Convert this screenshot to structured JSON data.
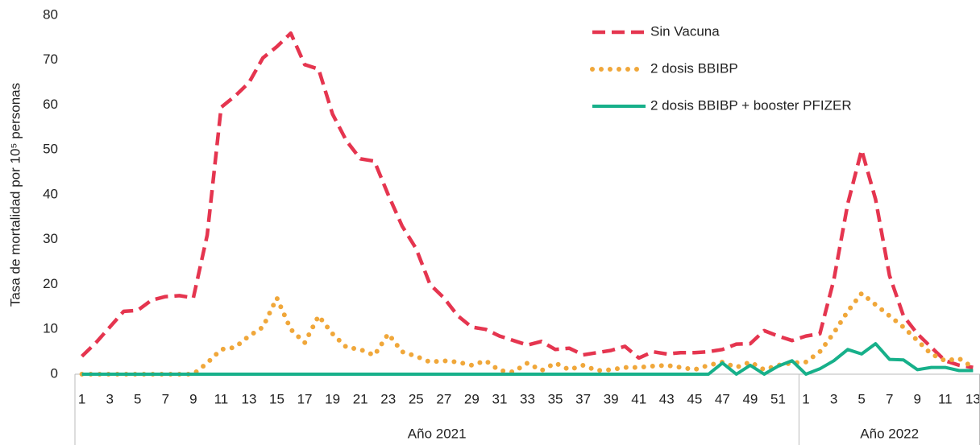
{
  "chart_data": {
    "type": "line",
    "y_label": "Tasa de mortalidad por 10⁵ personas",
    "category_groups": [
      {
        "name": "Año 2021",
        "categories": [
          "1",
          null,
          "3",
          null,
          "5",
          null,
          "7",
          null,
          "9",
          null,
          "11",
          null,
          "13",
          null,
          "15",
          null,
          "17",
          null,
          "19",
          null,
          "21",
          null,
          "23",
          null,
          "25",
          null,
          "27",
          null,
          "29",
          null,
          "31",
          null,
          "33",
          null,
          "35",
          null,
          "37",
          null,
          "39",
          null,
          "41",
          null,
          "43",
          null,
          "45",
          null,
          "47",
          null,
          "49",
          null,
          "51",
          null
        ]
      },
      {
        "name": "Año 2022",
        "categories": [
          "1",
          null,
          "3",
          null,
          "5",
          null,
          "7",
          null,
          "9",
          null,
          "11",
          null,
          "13"
        ]
      }
    ],
    "series": [
      {
        "name": "Sin Vacuna",
        "color": "#e5354f",
        "style": "dashed",
        "values": [
          4,
          7,
          10.5,
          14,
          14.2,
          16.5,
          17.3,
          17.5,
          17,
          31,
          59.5,
          62,
          65,
          70.5,
          73,
          76,
          69,
          68,
          58,
          52,
          48,
          47.5,
          40,
          33,
          28,
          20,
          17,
          13,
          10.5,
          10,
          8.5,
          7.5,
          6.5,
          7.3,
          5.5,
          5.8,
          4.3,
          4.8,
          5.3,
          6.2,
          3.6,
          5,
          4.5,
          4.8,
          4.8,
          5,
          5.5,
          6.7,
          6.8,
          9.7,
          8.5,
          7.5,
          8.5,
          9,
          21,
          38,
          50,
          39,
          22,
          13,
          9,
          6,
          3,
          2,
          1.5
        ]
      },
      {
        "name": "2 dosis BBIBP",
        "color": "#f0a73a",
        "style": "dotted",
        "values": [
          0,
          0,
          0,
          0,
          0,
          0,
          0,
          0,
          0,
          2.5,
          5.5,
          6,
          8.5,
          10.5,
          17,
          10,
          7,
          13,
          9,
          6,
          5.5,
          4.2,
          9,
          5,
          4,
          2.7,
          3,
          2.7,
          2,
          3,
          0.8,
          0.5,
          2.5,
          0.8,
          2.5,
          1,
          2,
          0.8,
          1,
          1.5,
          1.5,
          1.8,
          2,
          1.5,
          1,
          2,
          2.7,
          1.5,
          2.7,
          1,
          2,
          2.5,
          2.7,
          5,
          9.2,
          14,
          18,
          15.5,
          13,
          10.5,
          7.5,
          4.5,
          3,
          3.5,
          1.5
        ]
      },
      {
        "name": "2 dosis BBIBP + booster PFIZER",
        "color": "#17b08a",
        "style": "solid",
        "values": [
          0,
          0,
          0,
          0,
          0,
          0,
          0,
          0,
          0,
          0,
          0,
          0,
          0,
          0,
          0,
          0,
          0,
          0,
          0,
          0,
          0,
          0,
          0,
          0,
          0,
          0,
          0,
          0,
          0,
          0,
          0,
          0,
          0,
          0,
          0,
          0,
          0,
          0,
          0,
          0,
          0,
          0,
          0,
          0,
          0,
          0,
          2.5,
          0,
          2,
          0,
          1.8,
          3,
          0,
          1.2,
          3,
          5.5,
          4.5,
          6.8,
          3.3,
          3.2,
          1,
          1.5,
          1.5,
          0.8,
          0.8
        ]
      }
    ],
    "ylim": [
      0,
      80
    ],
    "yticks": [
      0,
      10,
      20,
      30,
      40,
      50,
      60,
      70,
      80
    ],
    "grid": false,
    "legend": "upper right"
  }
}
